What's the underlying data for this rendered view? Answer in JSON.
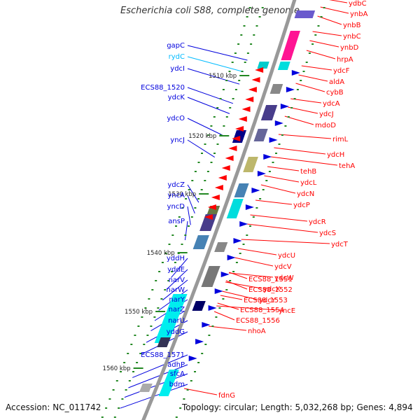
{
  "title": "Escherichia coli S88, complete genome",
  "footer": {
    "accession": "Accession: NC_011742",
    "topology": "Topology: circular; Length: 5,032,268 bp; Genes: 4,894"
  },
  "colors": {
    "forward": "#ff0000",
    "reverse": "#0000dd",
    "rna": "#00bbff",
    "backbone": "#999999"
  },
  "kbp_ticks": [
    "1510 kbp",
    "1520 kbp",
    "1530 kbp",
    "1540 kbp",
    "1550 kbp",
    "1560 kbp"
  ],
  "left_labels": [
    {
      "text": "gapC",
      "rna": false
    },
    {
      "text": "rydC",
      "rna": true
    },
    {
      "text": "ydcI",
      "rna": false
    },
    {
      "text": "ECS88_1520",
      "rna": false
    },
    {
      "text": "ydcK",
      "rna": false
    },
    {
      "text": "ydcO",
      "rna": false
    },
    {
      "text": "yncJ",
      "rna": false
    },
    {
      "text": "ydcZ",
      "rna": false
    },
    {
      "text": "yncA",
      "rna": false
    },
    {
      "text": "yncD",
      "rna": false
    },
    {
      "text": "ansP",
      "rna": false
    },
    {
      "text": "yddH",
      "rna": false
    },
    {
      "text": "yddE",
      "rna": false
    },
    {
      "text": "narV",
      "rna": false
    },
    {
      "text": "narW",
      "rna": false
    },
    {
      "text": "narY",
      "rna": false
    },
    {
      "text": "narZ",
      "rna": false
    },
    {
      "text": "narU",
      "rna": false
    },
    {
      "text": "yddG",
      "rna": false
    },
    {
      "text": "ECS88_1571",
      "rna": false
    },
    {
      "text": "adhP",
      "rna": false
    },
    {
      "text": "sfcA",
      "rna": false
    },
    {
      "text": "bdm",
      "rna": false
    }
  ],
  "right_labels": [
    "ydbC",
    "ynbA",
    "ynbB",
    "ynbC",
    "ynbD",
    "hrpA",
    "ydcF",
    "aldA",
    "cybB",
    "ydcA",
    "ydcJ",
    "mdoD",
    "rimL",
    "ydcH",
    "tehA",
    "tehB",
    "ydcL",
    "ydcN",
    "ydcP",
    "ydcR",
    "ydcS",
    "ydcT",
    "ydcU",
    "ydcV",
    "ydcW",
    "ydcX",
    "ydcY",
    "yncE",
    "ECS88_1551",
    "ECS88_1552",
    "ECS88_1553",
    "ECS88_1554",
    "ECS88_1556",
    "nhoA",
    "fdnG"
  ]
}
